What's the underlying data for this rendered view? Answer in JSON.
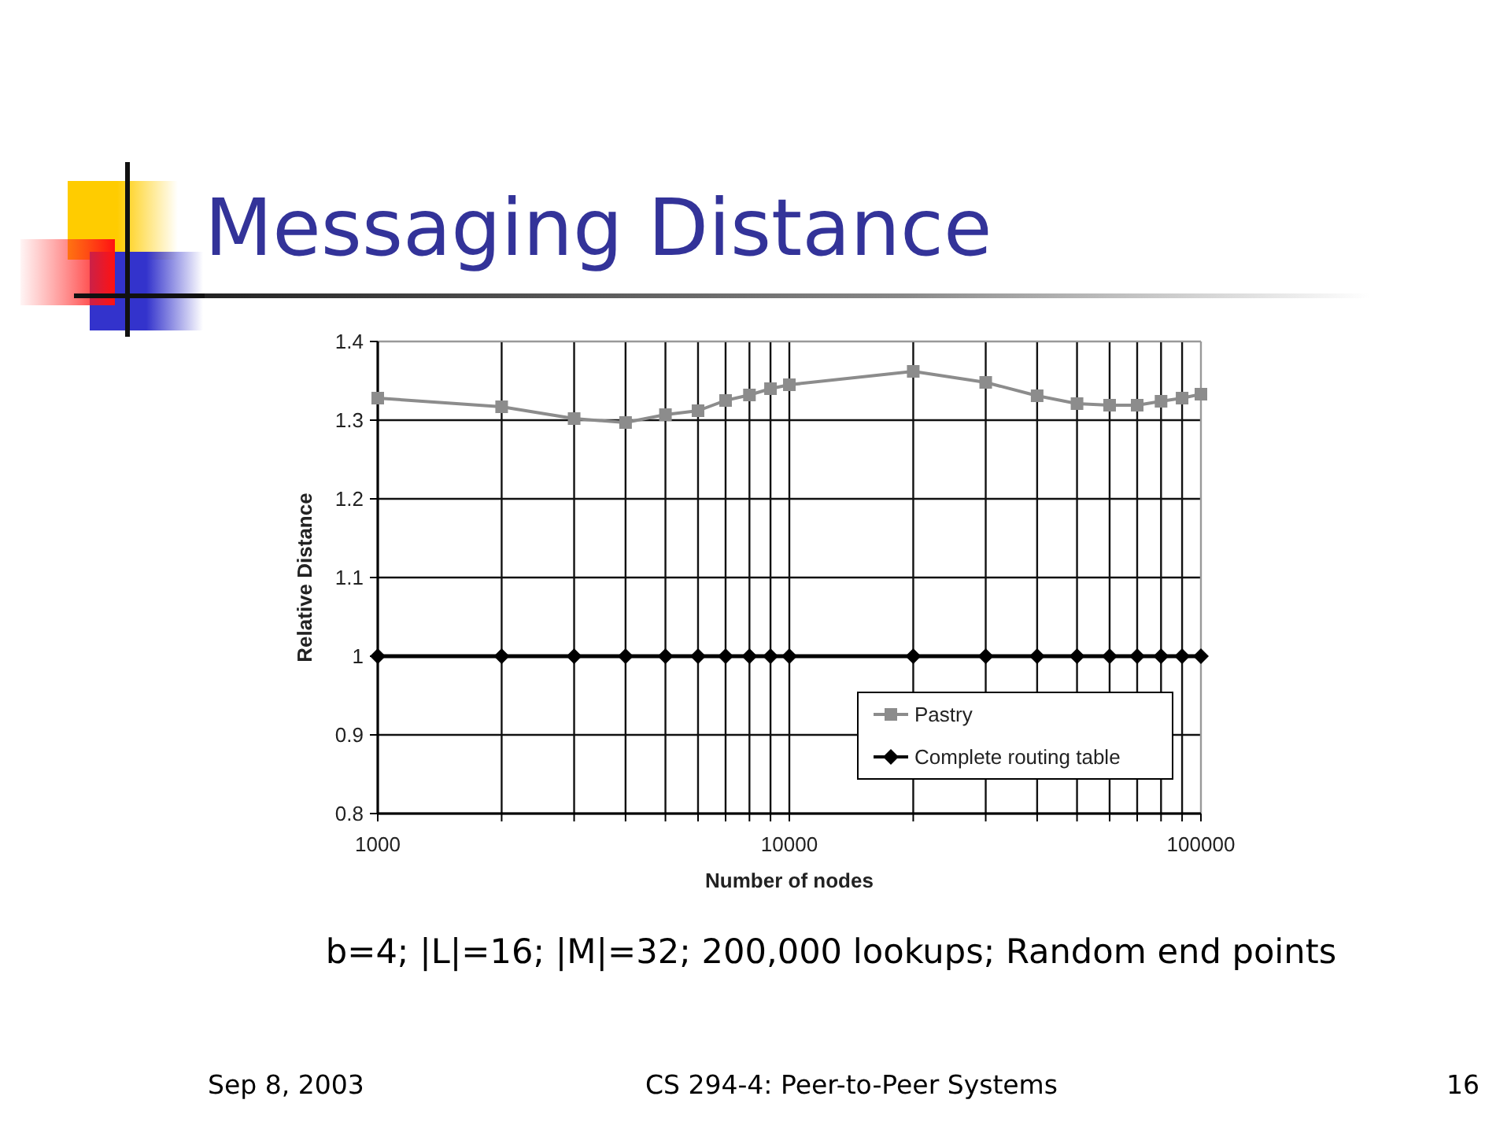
{
  "chart_data": {
    "type": "line",
    "title": "Messaging Distance",
    "xlabel": "Number of nodes",
    "ylabel": "Relative Distance",
    "x": [
      1000,
      2000,
      3000,
      4000,
      5000,
      6000,
      7000,
      8000,
      9000,
      10000,
      20000,
      30000,
      40000,
      50000,
      60000,
      70000,
      80000,
      90000,
      100000
    ],
    "series": [
      {
        "name": "Pastry",
        "color": "#8c8c8c",
        "marker": "square",
        "values": [
          1.328,
          1.317,
          1.302,
          1.297,
          1.307,
          1.312,
          1.325,
          1.332,
          1.34,
          1.345,
          1.362,
          1.348,
          1.331,
          1.321,
          1.319,
          1.319,
          1.324,
          1.328,
          1.333
        ]
      },
      {
        "name": "Complete routing table",
        "color": "#000000",
        "marker": "diamond",
        "values": [
          1,
          1,
          1,
          1,
          1,
          1,
          1,
          1,
          1,
          1,
          1,
          1,
          1,
          1,
          1,
          1,
          1,
          1,
          1
        ]
      }
    ],
    "log": "x",
    "xlim": [
      1000,
      100000
    ],
    "xticks": [
      1000,
      {
        "value": 2000,
        "label": null
      },
      {
        "value": 3000,
        "label": null
      },
      {
        "value": 4000,
        "label": null
      },
      {
        "value": 5000,
        "label": null
      },
      {
        "value": 6000,
        "label": null
      },
      {
        "value": 7000,
        "label": null
      },
      {
        "value": 8000,
        "label": null
      },
      {
        "value": 9000,
        "label": null
      },
      10000,
      {
        "value": 20000,
        "label": null
      },
      {
        "value": 30000,
        "label": null
      },
      {
        "value": 40000,
        "label": null
      },
      {
        "value": 50000,
        "label": null
      },
      {
        "value": 60000,
        "label": null
      },
      {
        "value": 70000,
        "label": null
      },
      {
        "value": 80000,
        "label": null
      },
      {
        "value": 90000,
        "label": null
      },
      100000
    ],
    "ylim": [
      0.8,
      1.4
    ],
    "yticks": [
      0.8,
      0.9,
      1,
      1.1,
      1.2,
      1.3,
      1.4
    ],
    "grid": true,
    "legend": "bottom right",
    "annotations": [
      "b=4; |L|=16; |M|=32; 200,000 lookups; Random end points",
      "Sep 8, 2003",
      "CS 294-4: Peer-to-Peer Systems",
      "16"
    ]
  }
}
